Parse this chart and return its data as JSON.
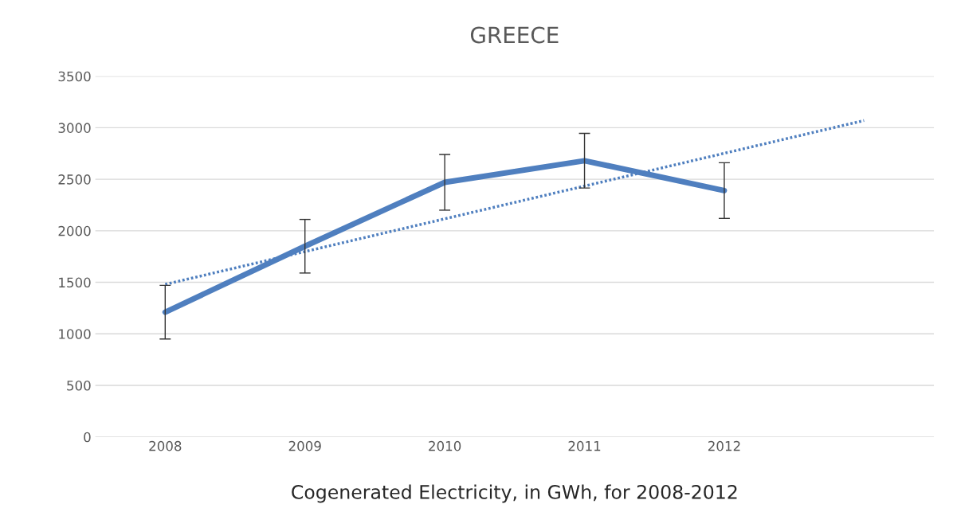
{
  "chart_data": {
    "type": "line",
    "title": "GREECE",
    "xlabel": "Cogenerated Electricity, in GWh, for 2008-2012",
    "x": [
      2008,
      2009,
      2010,
      2011,
      2012
    ],
    "xlim": [
      2007.5,
      2013.5
    ],
    "xticks": [
      2008,
      2009,
      2010,
      2011,
      2012
    ],
    "ylim": [
      0,
      3500
    ],
    "yticks": [
      0,
      500,
      1000,
      1500,
      2000,
      2500,
      3000,
      3500
    ],
    "grid": "y",
    "series": [
      {
        "color": "#4f7fbf",
        "values": [
          1210,
          1850,
          2470,
          2680,
          2390
        ],
        "errors": [
          260,
          260,
          270,
          265,
          270
        ],
        "line_style": "solid"
      },
      {
        "color": "#4f7fbf",
        "x": [
          2008,
          2013
        ],
        "values": [
          1480,
          3070
        ],
        "line_style": "dotted"
      }
    ]
  }
}
